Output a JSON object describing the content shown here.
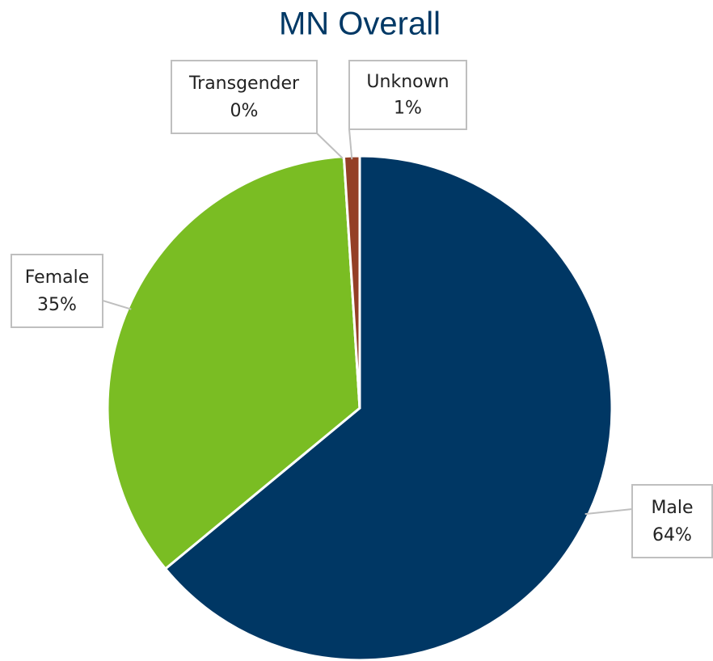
{
  "chart_data": {
    "type": "pie",
    "title": "MN Overall",
    "categories": [
      "Male",
      "Female",
      "Transgender",
      "Unknown"
    ],
    "values": [
      64,
      35,
      0,
      1
    ],
    "value_labels": [
      "64%",
      "35%",
      "0%",
      "1%"
    ],
    "colors": [
      "#003764",
      "#7abd23",
      "#7f5fa8",
      "#943f26"
    ]
  }
}
